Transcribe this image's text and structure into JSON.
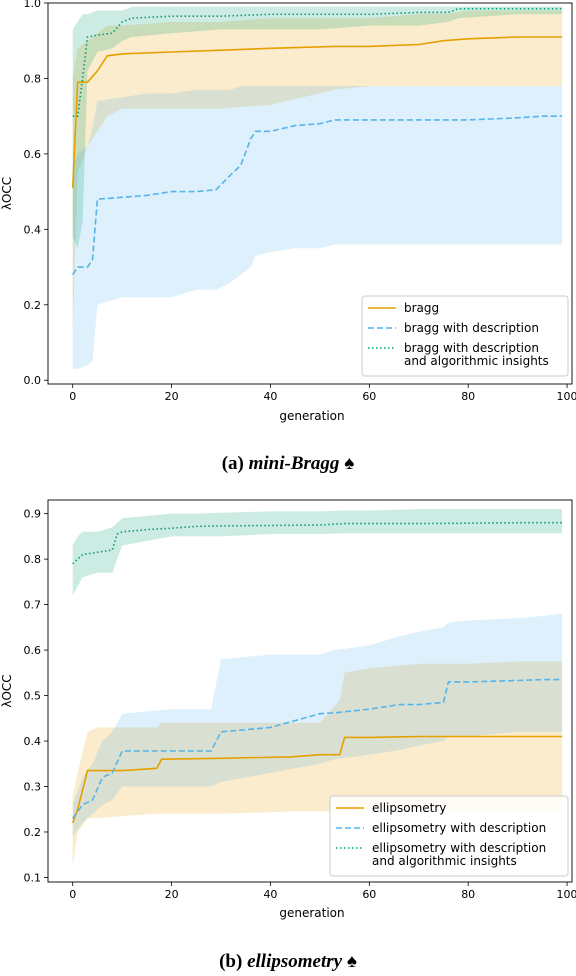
{
  "colors": {
    "orange": "#e69f00",
    "blue": "#56b4e9",
    "green": "#009e73"
  },
  "captions": {
    "a_label": "(a)",
    "a_name": "mini-Bragg",
    "a_symbol": "♠",
    "b_label": "(b)",
    "b_name": "ellipsometry",
    "b_symbol": "♠"
  },
  "chart_data": [
    {
      "type": "line",
      "xlabel": "generation",
      "ylabel": "λOCC",
      "xlim": [
        -5,
        101
      ],
      "ylim": [
        -0.01,
        1.0
      ],
      "xticks": [
        0,
        20,
        40,
        60,
        80,
        100
      ],
      "yticks": [
        0.0,
        0.2,
        0.4,
        0.6,
        0.8,
        1.0
      ],
      "legend_position": "lower-right",
      "series": [
        {
          "name": "bragg",
          "color": "orange",
          "style": "solid",
          "x": [
            0,
            1,
            3,
            5,
            7,
            10,
            20,
            30,
            40,
            53,
            60,
            70,
            75,
            80,
            90,
            99
          ],
          "y": [
            0.51,
            0.79,
            0.79,
            0.82,
            0.86,
            0.865,
            0.87,
            0.875,
            0.88,
            0.885,
            0.885,
            0.89,
            0.9,
            0.905,
            0.91,
            0.91
          ],
          "band_low": [
            0.12,
            0.55,
            0.62,
            0.66,
            0.7,
            0.72,
            0.72,
            0.72,
            0.73,
            0.77,
            0.78,
            0.78,
            0.78,
            0.78,
            0.78,
            0.78
          ],
          "band_high": [
            0.8,
            0.88,
            0.9,
            0.92,
            0.94,
            0.94,
            0.95,
            0.95,
            0.96,
            0.96,
            0.96,
            0.97,
            0.97,
            0.98,
            0.98,
            0.98
          ]
        },
        {
          "name": "bragg with description",
          "color": "blue",
          "style": "dashed",
          "x": [
            0,
            1,
            3,
            4,
            5,
            10,
            15,
            20,
            25,
            29,
            32,
            34,
            36,
            37,
            40,
            45,
            50,
            53,
            60,
            70,
            80,
            89,
            95,
            99
          ],
          "y": [
            0.28,
            0.3,
            0.3,
            0.32,
            0.48,
            0.485,
            0.49,
            0.5,
            0.5,
            0.505,
            0.545,
            0.57,
            0.64,
            0.66,
            0.66,
            0.675,
            0.68,
            0.69,
            0.69,
            0.69,
            0.69,
            0.695,
            0.7,
            0.7
          ],
          "band_low": [
            0.03,
            0.03,
            0.04,
            0.05,
            0.2,
            0.22,
            0.22,
            0.22,
            0.24,
            0.24,
            0.26,
            0.28,
            0.3,
            0.33,
            0.34,
            0.35,
            0.35,
            0.36,
            0.36,
            0.36,
            0.36,
            0.36,
            0.36,
            0.36
          ],
          "band_high": [
            0.57,
            0.6,
            0.62,
            0.67,
            0.74,
            0.75,
            0.76,
            0.76,
            0.77,
            0.77,
            0.77,
            0.78,
            0.78,
            0.78,
            0.78,
            0.78,
            0.78,
            0.78,
            0.78,
            0.78,
            0.78,
            0.78,
            0.78,
            0.78
          ]
        },
        {
          "name": "bragg with description\nand algorithmic insights",
          "color": "green",
          "style": "dotted",
          "x": [
            0,
            1,
            2,
            3,
            5,
            8,
            10,
            12,
            20,
            30,
            40,
            50,
            60,
            70,
            76,
            78,
            90,
            99
          ],
          "y": [
            0.7,
            0.7,
            0.8,
            0.91,
            0.915,
            0.92,
            0.95,
            0.96,
            0.965,
            0.965,
            0.97,
            0.97,
            0.97,
            0.975,
            0.975,
            0.985,
            0.985,
            0.985
          ],
          "band_low": [
            0.38,
            0.35,
            0.42,
            0.82,
            0.87,
            0.88,
            0.9,
            0.91,
            0.92,
            0.93,
            0.93,
            0.93,
            0.94,
            0.94,
            0.95,
            0.96,
            0.97,
            0.97
          ],
          "band_high": [
            0.93,
            0.95,
            0.97,
            0.97,
            0.98,
            0.98,
            0.98,
            0.99,
            0.99,
            0.99,
            0.99,
            0.99,
            0.99,
            0.99,
            0.99,
            0.99,
            0.99,
            0.99
          ]
        }
      ]
    },
    {
      "type": "line",
      "xlabel": "generation",
      "ylabel": "λOCC",
      "xlim": [
        -5,
        101
      ],
      "ylim": [
        0.09,
        0.93
      ],
      "xticks": [
        0,
        20,
        40,
        60,
        80,
        100
      ],
      "yticks": [
        0.1,
        0.2,
        0.3,
        0.4,
        0.5,
        0.6,
        0.7,
        0.8,
        0.9
      ],
      "legend_position": "lower-right",
      "series": [
        {
          "name": "ellipsometry",
          "color": "orange",
          "style": "solid",
          "x": [
            0,
            1,
            3,
            5,
            10,
            17,
            18,
            30,
            44,
            50,
            54,
            55,
            60,
            70,
            80,
            90,
            99
          ],
          "y": [
            0.22,
            0.25,
            0.335,
            0.335,
            0.335,
            0.34,
            0.36,
            0.362,
            0.365,
            0.37,
            0.37,
            0.408,
            0.408,
            0.41,
            0.41,
            0.41,
            0.41
          ],
          "band_low": [
            0.12,
            0.2,
            0.23,
            0.23,
            0.235,
            0.24,
            0.24,
            0.24,
            0.245,
            0.245,
            0.245,
            0.245,
            0.245,
            0.245,
            0.245,
            0.245,
            0.245
          ],
          "band_high": [
            0.28,
            0.33,
            0.42,
            0.43,
            0.43,
            0.43,
            0.44,
            0.44,
            0.44,
            0.44,
            0.49,
            0.55,
            0.56,
            0.57,
            0.57,
            0.575,
            0.575
          ]
        },
        {
          "name": "ellipsometry with description",
          "color": "blue",
          "style": "dashed",
          "x": [
            0,
            2,
            4,
            6,
            8,
            10,
            20,
            28,
            30,
            35,
            40,
            45,
            50,
            53,
            60,
            66,
            70,
            75,
            76,
            80,
            90,
            95,
            99
          ],
          "y": [
            0.23,
            0.26,
            0.27,
            0.32,
            0.33,
            0.378,
            0.378,
            0.378,
            0.42,
            0.425,
            0.43,
            0.445,
            0.46,
            0.462,
            0.47,
            0.48,
            0.48,
            0.485,
            0.53,
            0.53,
            0.533,
            0.535,
            0.535
          ],
          "band_low": [
            0.19,
            0.22,
            0.24,
            0.26,
            0.27,
            0.3,
            0.3,
            0.3,
            0.31,
            0.32,
            0.33,
            0.34,
            0.35,
            0.36,
            0.37,
            0.38,
            0.39,
            0.4,
            0.41,
            0.41,
            0.42,
            0.42,
            0.42
          ],
          "band_high": [
            0.26,
            0.32,
            0.35,
            0.4,
            0.42,
            0.46,
            0.47,
            0.47,
            0.58,
            0.585,
            0.59,
            0.59,
            0.59,
            0.6,
            0.61,
            0.63,
            0.64,
            0.65,
            0.66,
            0.665,
            0.67,
            0.675,
            0.68
          ]
        },
        {
          "name": "ellipsometry with description\nand algorithmic insights",
          "color": "green",
          "style": "dotted",
          "x": [
            0,
            1,
            2,
            5,
            8,
            9,
            10,
            15,
            20,
            25,
            30,
            40,
            50,
            55,
            60,
            70,
            80,
            90,
            99
          ],
          "y": [
            0.79,
            0.8,
            0.81,
            0.815,
            0.82,
            0.855,
            0.86,
            0.865,
            0.868,
            0.872,
            0.873,
            0.874,
            0.875,
            0.878,
            0.878,
            0.878,
            0.879,
            0.88,
            0.88
          ],
          "band_low": [
            0.72,
            0.74,
            0.76,
            0.77,
            0.77,
            0.8,
            0.83,
            0.84,
            0.85,
            0.85,
            0.85,
            0.855,
            0.855,
            0.857,
            0.857,
            0.857,
            0.857,
            0.857,
            0.857
          ],
          "band_high": [
            0.83,
            0.85,
            0.86,
            0.86,
            0.87,
            0.88,
            0.89,
            0.895,
            0.9,
            0.9,
            0.902,
            0.905,
            0.905,
            0.907,
            0.907,
            0.91,
            0.91,
            0.91,
            0.91
          ]
        }
      ]
    }
  ]
}
